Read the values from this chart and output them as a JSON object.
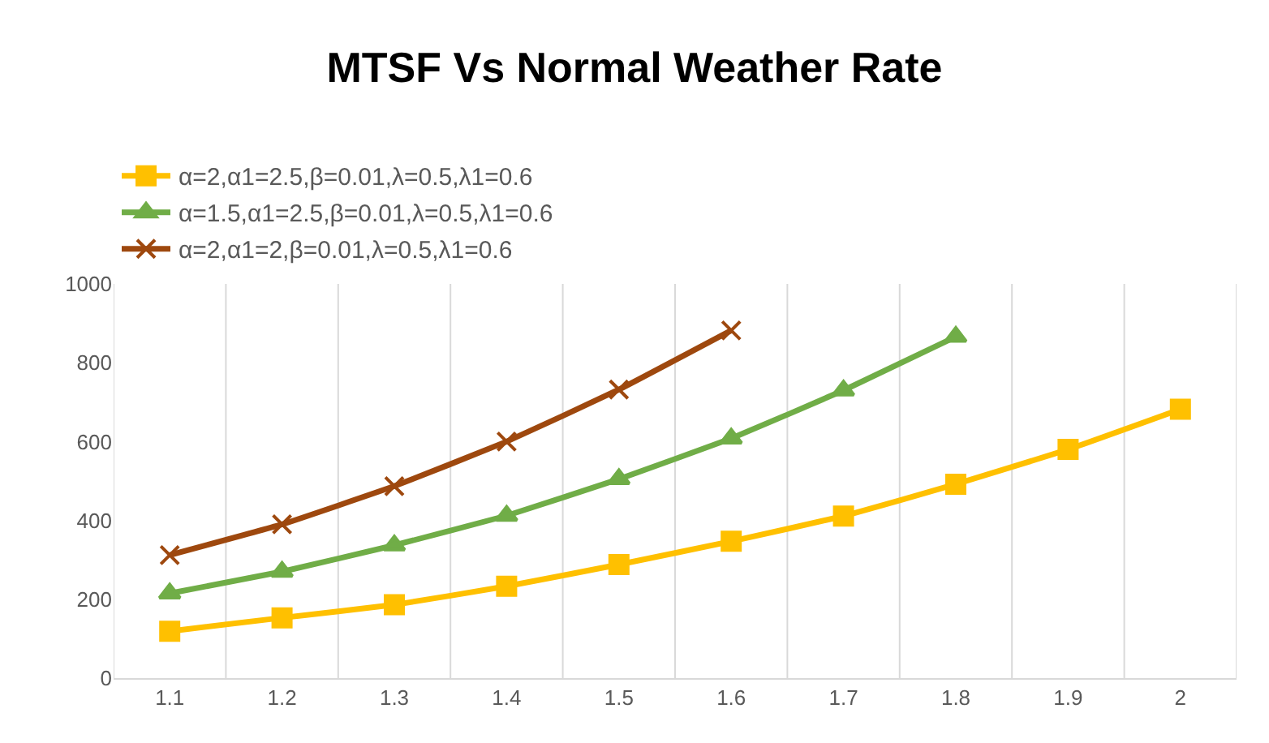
{
  "chart_data": {
    "type": "line",
    "title": "MTSF Vs Normal Weather Rate",
    "categories": [
      "1.1",
      "1.2",
      "1.3",
      "1.4",
      "1.5",
      "1.6",
      "1.7",
      "1.8",
      "1.9",
      "2"
    ],
    "series": [
      {
        "name": "α=2,α1=2.5,β=0.01,λ=0.5,λ1=0.6",
        "color": "#ffc000",
        "marker": "square",
        "values": [
          119,
          153,
          186,
          233,
          288,
          347,
          411,
          492,
          580,
          682
        ]
      },
      {
        "name": "α=1.5,α1=2.5,β=0.01,λ=0.5,λ1=0.6",
        "color": "#70ad47",
        "marker": "triangle",
        "values": [
          215,
          270,
          337,
          412,
          505,
          608,
          730,
          866,
          null,
          null
        ]
      },
      {
        "name": "α=2,α1=2,β=0.01,λ=0.5,λ1=0.6",
        "color": "#9e480e",
        "marker": "cross",
        "values": [
          312,
          390,
          487,
          600,
          732,
          882,
          null,
          null,
          null,
          null
        ]
      }
    ],
    "ylim": [
      0,
      1000
    ],
    "yticks": [
      0,
      200,
      400,
      600,
      800,
      1000
    ],
    "grid": "x",
    "legend": "top",
    "line_style": "solid"
  }
}
